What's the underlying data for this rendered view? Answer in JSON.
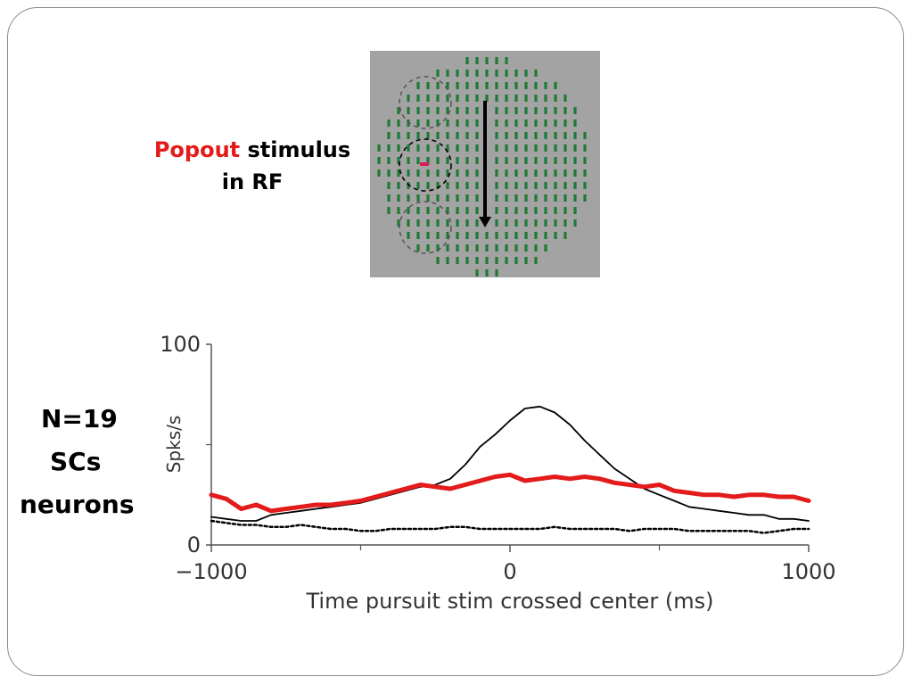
{
  "slide": {
    "popout_word": "Popout",
    "popout_rest": " stimulus",
    "popout_line2": "in RF",
    "n_line1": "N=19",
    "n_line2": "SCs",
    "n_line3": "neurons"
  },
  "colors": {
    "stim_background": "#a3a3a3",
    "bar_green": "#1e7a34",
    "popout_red": "#e0195a",
    "series_red": "#e31b1b",
    "series_black": "#000000"
  },
  "chart_data": {
    "type": "line",
    "title": "",
    "xlabel": "Time pursuit stim crossed center (ms)",
    "ylabel": "Spks/s",
    "xlim": [
      -1000,
      1000
    ],
    "ylim": [
      0,
      100
    ],
    "xticks": [
      -1000,
      0,
      1000
    ],
    "xtick_labels": [
      "−1000",
      "0",
      "1000"
    ],
    "yticks": [
      0,
      100
    ],
    "ytick_labels": [
      "0",
      "100"
    ],
    "grid": false,
    "legend": "none",
    "series": [
      {
        "color": "#e31b1b",
        "style": "thick",
        "x": [
          -1000,
          -950,
          -900,
          -850,
          -800,
          -750,
          -700,
          -650,
          -600,
          -550,
          -500,
          -450,
          -400,
          -350,
          -300,
          -250,
          -200,
          -150,
          -100,
          -50,
          0,
          50,
          100,
          150,
          200,
          250,
          300,
          350,
          400,
          450,
          500,
          550,
          600,
          650,
          700,
          750,
          800,
          850,
          900,
          950,
          1000
        ],
        "y": [
          25,
          23,
          18,
          20,
          17,
          18,
          19,
          20,
          20,
          21,
          22,
          24,
          26,
          28,
          30,
          29,
          28,
          30,
          32,
          34,
          35,
          32,
          33,
          34,
          33,
          34,
          33,
          31,
          30,
          29,
          30,
          27,
          26,
          25,
          25,
          24,
          25,
          25,
          24,
          24,
          22
        ]
      },
      {
        "color": "#000000",
        "style": "thin",
        "x": [
          -1000,
          -950,
          -900,
          -850,
          -800,
          -750,
          -700,
          -650,
          -600,
          -550,
          -500,
          -450,
          -400,
          -350,
          -300,
          -250,
          -200,
          -150,
          -100,
          -50,
          0,
          50,
          100,
          150,
          200,
          250,
          300,
          350,
          400,
          450,
          500,
          550,
          600,
          650,
          700,
          750,
          800,
          850,
          900,
          950,
          1000
        ],
        "y": [
          14,
          13,
          12,
          12,
          15,
          16,
          17,
          18,
          19,
          20,
          21,
          23,
          25,
          27,
          29,
          30,
          33,
          40,
          49,
          55,
          62,
          68,
          69,
          66,
          60,
          52,
          45,
          38,
          33,
          28,
          25,
          22,
          19,
          18,
          17,
          16,
          15,
          15,
          13,
          13,
          12
        ]
      },
      {
        "color": "#000000",
        "style": "dotted",
        "x": [
          -1000,
          -950,
          -900,
          -850,
          -800,
          -750,
          -700,
          -650,
          -600,
          -550,
          -500,
          -450,
          -400,
          -350,
          -300,
          -250,
          -200,
          -150,
          -100,
          -50,
          0,
          50,
          100,
          150,
          200,
          250,
          300,
          350,
          400,
          450,
          500,
          550,
          600,
          650,
          700,
          750,
          800,
          850,
          900,
          950,
          1000
        ],
        "y": [
          12,
          11,
          10,
          10,
          9,
          9,
          10,
          9,
          8,
          8,
          7,
          7,
          8,
          8,
          8,
          8,
          9,
          9,
          8,
          8,
          8,
          8,
          8,
          9,
          8,
          8,
          8,
          8,
          7,
          8,
          8,
          8,
          7,
          7,
          7,
          7,
          7,
          6,
          7,
          8,
          8
        ]
      }
    ]
  }
}
